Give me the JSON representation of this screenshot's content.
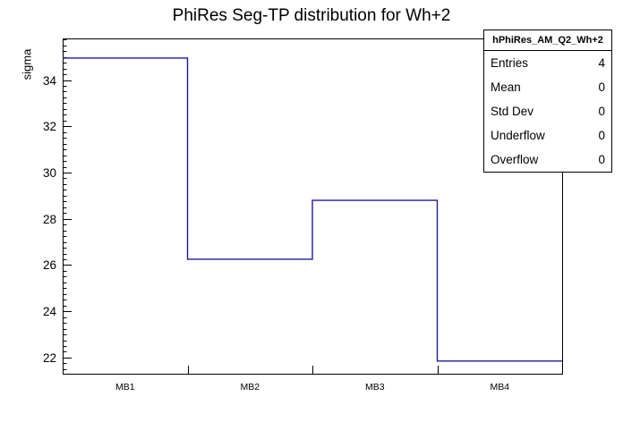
{
  "chart_data": {
    "type": "line",
    "style": "root-step-histogram",
    "title": "PhiRes Seg-TP distribution for Wh+2",
    "categories": [
      "MB1",
      "MB2",
      "MB3",
      "MB4"
    ],
    "values": [
      34.95,
      26.25,
      28.8,
      21.85
    ],
    "xlabel": "",
    "ylabel": "sigma",
    "ylim": [
      21.3,
      35.8
    ],
    "yticks": [
      22,
      24,
      26,
      28,
      30,
      32,
      34
    ],
    "minor_tick_step": 0.25,
    "grid": false,
    "legend": "none",
    "line_color": "#1c1c9c",
    "frame_color": "#000000",
    "background_color": "#ffffff"
  },
  "stats_box": {
    "title": "hPhiRes_AM_Q2_Wh+2",
    "rows": [
      {
        "label": "Entries",
        "value": "4"
      },
      {
        "label": "Mean",
        "value": "0"
      },
      {
        "label": "Std Dev",
        "value": "0"
      },
      {
        "label": "Underflow",
        "value": "0"
      },
      {
        "label": "Overflow",
        "value": "0"
      }
    ]
  }
}
